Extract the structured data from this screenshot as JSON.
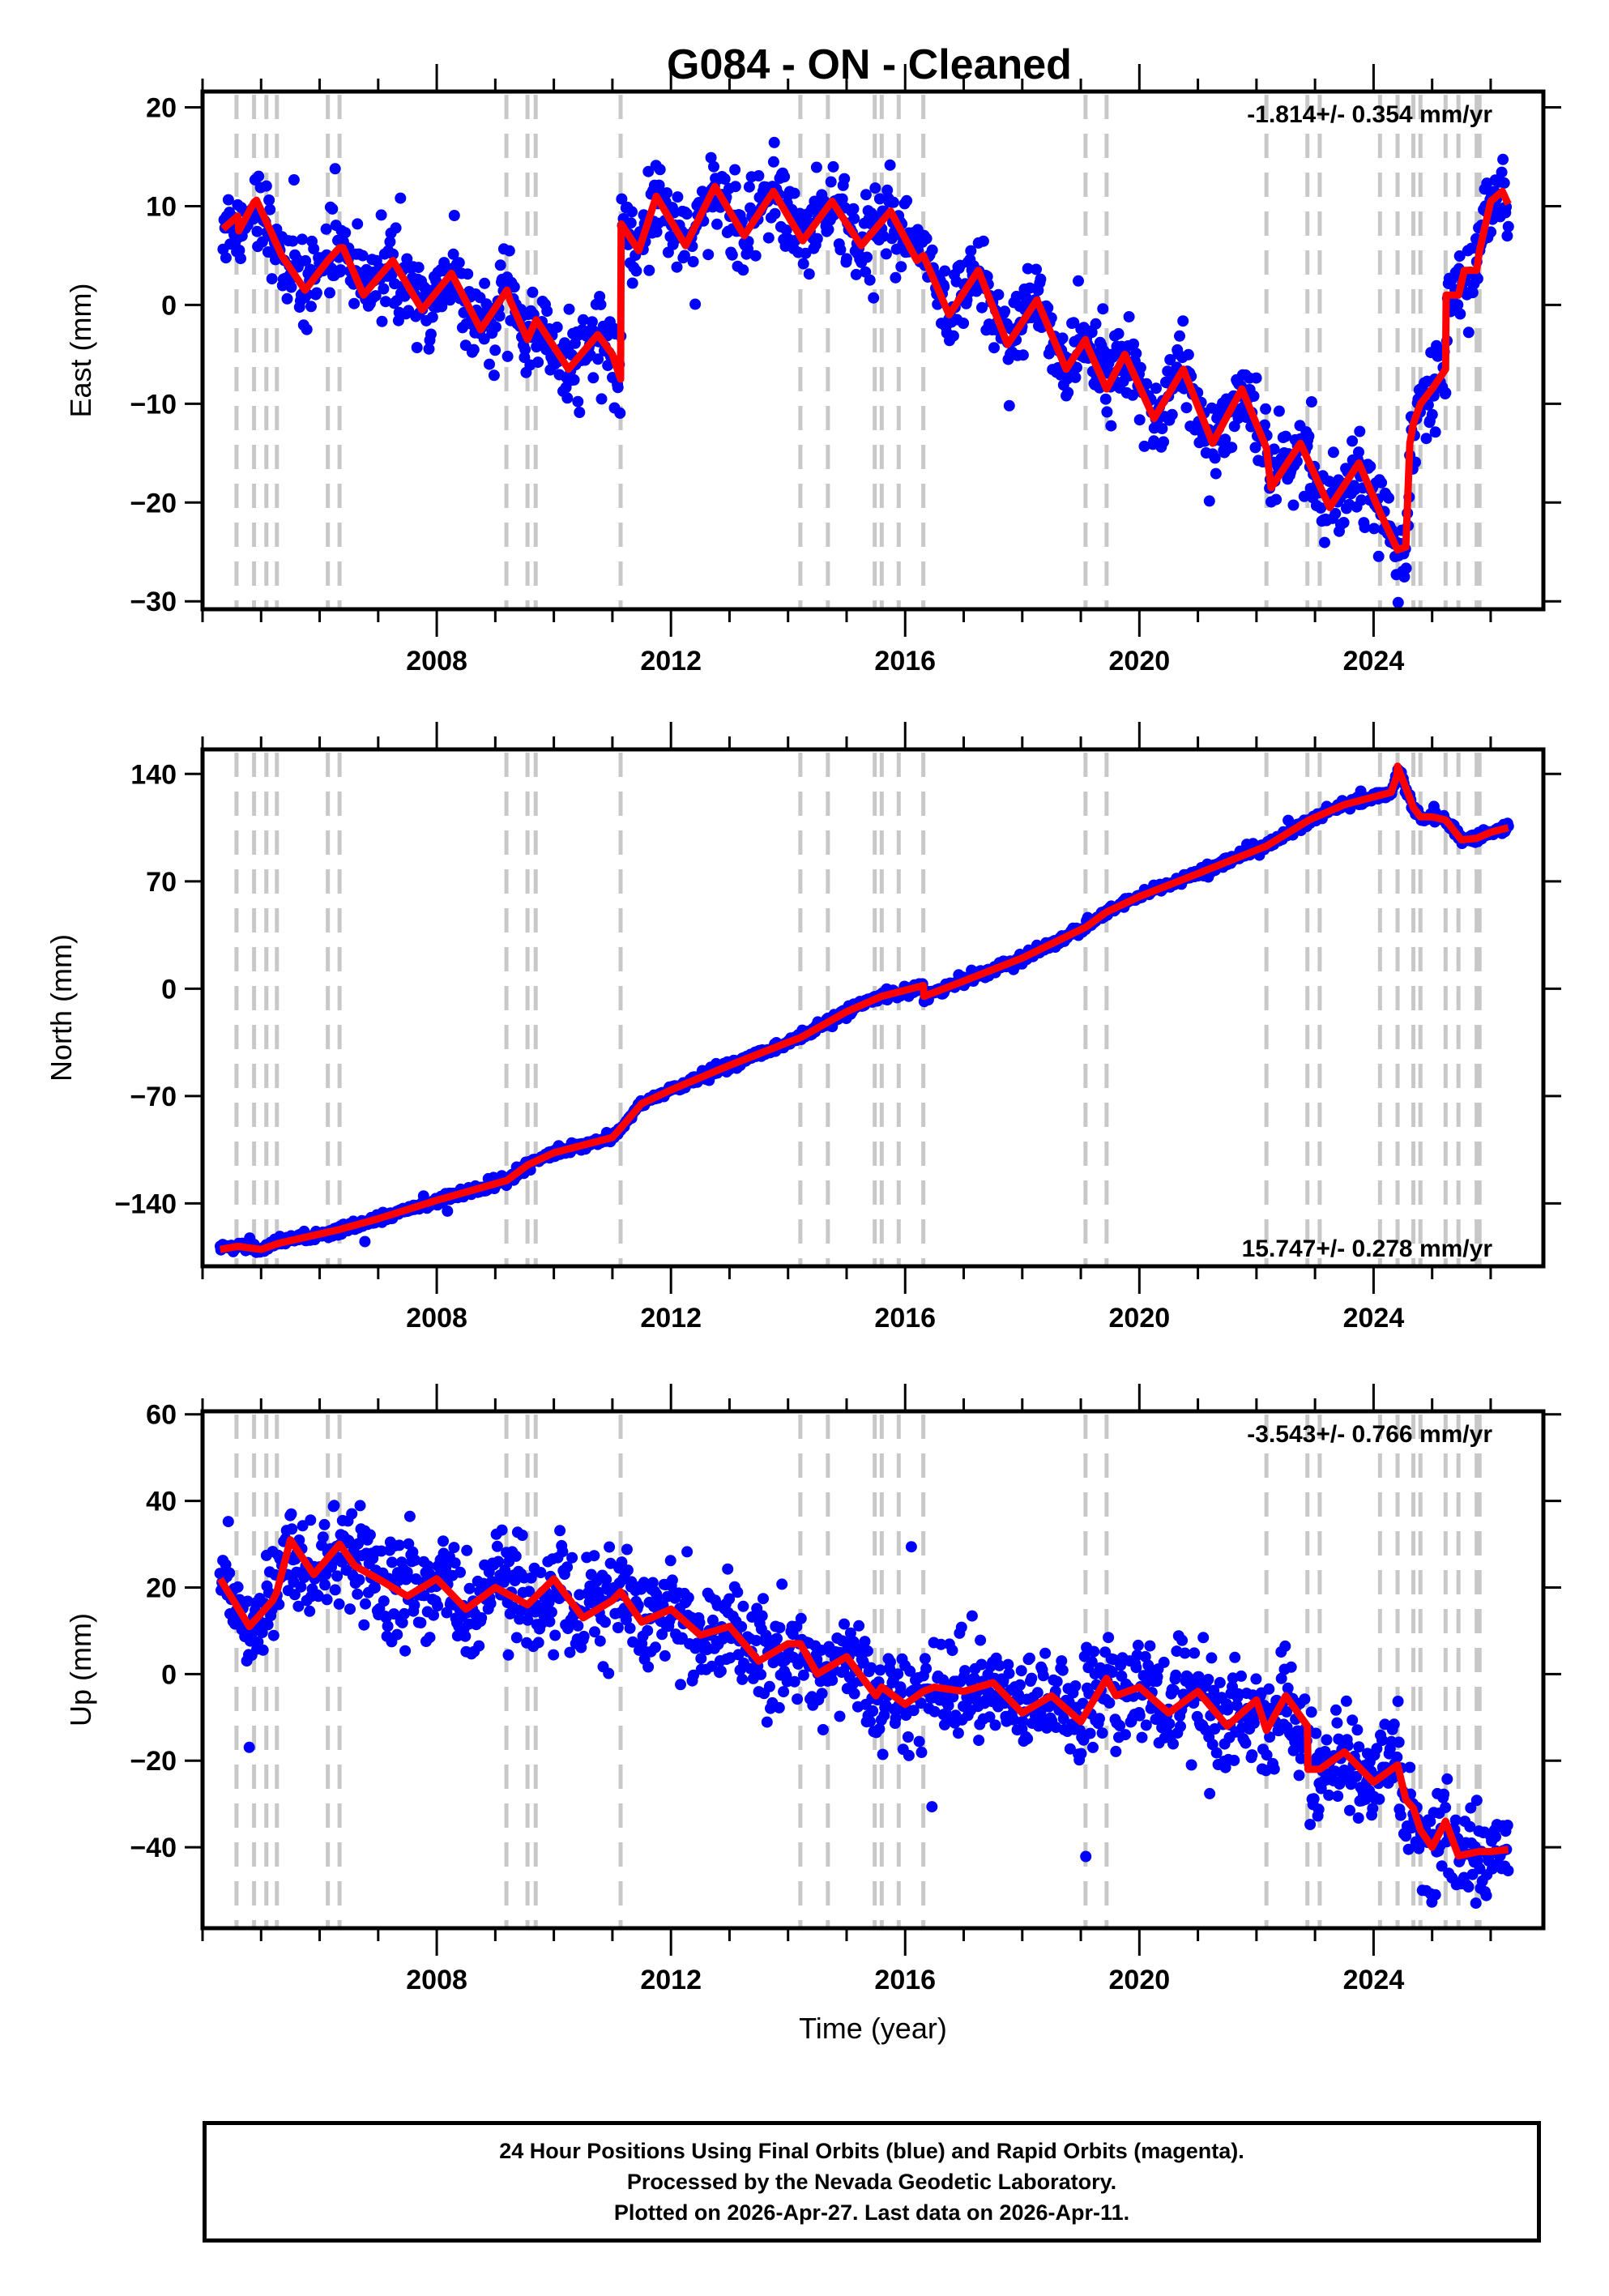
{
  "title": "G084  - ON - Cleaned",
  "colors": {
    "data_points": "#0000ff",
    "model_line": "#ff0000",
    "dashed_lines": "#c8c8c8",
    "frame": "#000000"
  },
  "footer": {
    "line1": "24 Hour Positions Using Final Orbits (blue) and Rapid Orbits (magenta).",
    "line2": "Processed by the Nevada Geodetic Laboratory.",
    "line3": "Plotted on 2026-Apr-27. Last data on 2026-Apr-11."
  },
  "chart_data": [
    {
      "type": "scatter",
      "name": "east",
      "title": "",
      "xlabel": "",
      "ylabel": "East (mm)",
      "xlim": [
        2004.0,
        2026.9
      ],
      "ylim": [
        -30.8,
        21.6
      ],
      "xticks": [
        2008,
        2012,
        2016,
        2020,
        2024
      ],
      "xtick_labels": [
        "2008",
        "2012",
        "2016",
        "2020",
        "2024"
      ],
      "yticks": [
        20,
        10,
        0,
        -10,
        -20,
        -30
      ],
      "ytick_labels": [
        "20",
        "10",
        "0",
        "−10",
        "−20",
        "−30"
      ],
      "rate_annotation": "-1.814+/- 0.354 mm/yr",
      "rate_position": "top-right",
      "scatter_noise_mm": 2.0,
      "model": {
        "x": [
          2004.35,
          2004.6,
          2004.62,
          2004.88,
          2004.92,
          2005.2,
          2005.35,
          2005.75,
          2006.14,
          2006.34,
          2006.4,
          2006.75,
          2007.25,
          2007.75,
          2008.25,
          2008.75,
          2009.2,
          2009.25,
          2009.55,
          2009.7,
          2010.25,
          2010.75,
          2011.0,
          2011.14,
          2011.15,
          2011.45,
          2011.75,
          2012.25,
          2012.75,
          2013.25,
          2013.75,
          2014.25,
          2014.75,
          2015.25,
          2015.75,
          2016.2,
          2016.31,
          2016.75,
          2017.25,
          2017.75,
          2018.25,
          2018.75,
          2019.08,
          2019.1,
          2019.44,
          2019.75,
          2020.25,
          2020.75,
          2021.25,
          2021.75,
          2022.17,
          2022.25,
          2022.75,
          2023.25,
          2023.75,
          2024.11,
          2024.41,
          2024.55,
          2024.62,
          2024.68,
          2024.8,
          2025.0,
          2025.23,
          2025.24,
          2025.45,
          2025.55,
          2025.76,
          2025.81,
          2026.0,
          2026.2,
          2026.3
        ],
        "y": [
          7.7,
          9.0,
          7.5,
          10.4,
          10.6,
          7.0,
          5.0,
          1.5,
          4.5,
          5.8,
          5.8,
          1.0,
          4.5,
          -0.5,
          3.2,
          -2.5,
          1.5,
          0.5,
          -3.5,
          -1.5,
          -6.5,
          -3.0,
          -5.0,
          -7.5,
          8.2,
          5.5,
          11.0,
          6.0,
          12.0,
          7.0,
          11.5,
          6.5,
          10.5,
          6.0,
          9.5,
          4.5,
          5.0,
          -1.0,
          3.5,
          -4.0,
          0.5,
          -6.5,
          -3.5,
          -4.0,
          -8.5,
          -5.0,
          -11.5,
          -6.5,
          -14.0,
          -8.5,
          -14.5,
          -18.5,
          -14.0,
          -20.5,
          -16.0,
          -21.0,
          -24.8,
          -24.5,
          -14.0,
          -12.0,
          -10.0,
          -8.5,
          -6.5,
          1.0,
          1.0,
          3.5,
          3.5,
          5.5,
          10.5,
          11.5,
          10.2
        ]
      },
      "offsets": [
        [
          2011.14,
          15.7
        ],
        [
          2024.41,
          10.5
        ],
        [
          2025.23,
          7.5
        ]
      ]
    },
    {
      "type": "scatter",
      "name": "north",
      "title": "",
      "xlabel": "",
      "ylabel": "North (mm)",
      "xlim": [
        2004.0,
        2026.9
      ],
      "ylim": [
        -181,
        156
      ],
      "xticks": [
        2008,
        2012,
        2016,
        2020,
        2024
      ],
      "xtick_labels": [
        "2008",
        "2012",
        "2016",
        "2020",
        "2024"
      ],
      "yticks": [
        140,
        70,
        0,
        -70,
        -140
      ],
      "ytick_labels": [
        "140",
        "70",
        "0",
        "−70",
        "−140"
      ],
      "rate_annotation": "15.747+/- 0.278 mm/yr",
      "rate_position": "bottom-right",
      "scatter_noise_mm": 1.6,
      "model": {
        "x": [
          2004.3,
          2004.6,
          2005.0,
          2005.3,
          2006.0,
          2006.34,
          2007.0,
          2008.0,
          2009.2,
          2009.55,
          2010.0,
          2011.0,
          2011.14,
          2011.5,
          2012.0,
          2013.0,
          2014.0,
          2014.21,
          2015.0,
          2015.6,
          2016.31,
          2016.32,
          2017.0,
          2018.0,
          2019.08,
          2019.44,
          2020.0,
          2021.0,
          2022.17,
          2022.9,
          2023.5,
          2024.3,
          2024.4,
          2024.41,
          2024.68,
          2024.8,
          2025.0,
          2025.23,
          2025.5,
          2025.76,
          2026.0,
          2026.3
        ],
        "y": [
          -170,
          -168,
          -170,
          -166,
          -160,
          -157,
          -150,
          -138,
          -125,
          -115,
          -107,
          -97,
          -91,
          -75,
          -66,
          -50,
          -35,
          -32,
          -15,
          -5,
          2,
          -5,
          5,
          20,
          40,
          50,
          60,
          75,
          93,
          110,
          120,
          128,
          139,
          145,
          118,
          112,
          112,
          110,
          97,
          98,
          102,
          105
        ]
      },
      "offsets": []
    },
    {
      "type": "scatter",
      "name": "up",
      "title": "",
      "xlabel": "Time (year)",
      "ylabel": "Up (mm)",
      "xlim": [
        2004.0,
        2026.9
      ],
      "ylim": [
        -58.7,
        60.7
      ],
      "xticks": [
        2008,
        2012,
        2016,
        2020,
        2024
      ],
      "xtick_labels": [
        "2008",
        "2012",
        "2016",
        "2020",
        "2024"
      ],
      "yticks": [
        60,
        40,
        20,
        0,
        -20,
        -40
      ],
      "ytick_labels": [
        "60",
        "40",
        "20",
        "0",
        "−20",
        "−40"
      ],
      "rate_annotation": "-3.543+/- 0.766 mm/yr",
      "rate_position": "top-right",
      "scatter_noise_mm": 6.0,
      "model": {
        "x": [
          2004.3,
          2004.8,
          2005.2,
          2005.27,
          2005.5,
          2005.9,
          2006.34,
          2006.6,
          2007.0,
          2007.5,
          2008.0,
          2008.5,
          2009.0,
          2009.55,
          2010.0,
          2010.5,
          2011.0,
          2011.14,
          2011.5,
          2012.0,
          2012.5,
          2013.0,
          2013.5,
          2014.0,
          2014.21,
          2014.5,
          2015.0,
          2015.5,
          2015.6,
          2016.0,
          2016.31,
          2016.5,
          2017.0,
          2017.5,
          2018.0,
          2018.5,
          2019.0,
          2019.44,
          2019.6,
          2020.0,
          2020.5,
          2021.0,
          2021.5,
          2022.0,
          2022.17,
          2022.5,
          2022.87,
          2022.88,
          2023.08,
          2023.5,
          2024.0,
          2024.41,
          2024.55,
          2024.68,
          2024.8,
          2025.0,
          2025.23,
          2025.45,
          2025.8,
          2026.0,
          2026.3
        ],
        "y": [
          22,
          11,
          17,
          19,
          31,
          23,
          30,
          25,
          22,
          18,
          22,
          15,
          20,
          16,
          22,
          13,
          17,
          19,
          12,
          15,
          9,
          11,
          3,
          7,
          7,
          0,
          4,
          -5,
          -3,
          -7,
          -4,
          -3,
          -4,
          -2,
          -9,
          -5,
          -11,
          -1,
          -5,
          -3,
          -9,
          -4,
          -12,
          -6,
          -13,
          -5,
          -12,
          -22,
          -22,
          -18,
          -25,
          -21,
          -29,
          -31,
          -36,
          -40,
          -34,
          -42,
          -41,
          -41,
          -40.5
        ]
      },
      "offsets": []
    }
  ],
  "event_lines_years": [
    2004.58,
    2004.88,
    2005.09,
    2005.27,
    2006.14,
    2006.34,
    2009.19,
    2009.55,
    2009.69,
    2011.14,
    2014.21,
    2014.68,
    2015.48,
    2015.6,
    2015.89,
    2016.31,
    2019.08,
    2019.44,
    2022.17,
    2022.87,
    2023.08,
    2024.11,
    2024.41,
    2024.68,
    2024.8,
    2025.23,
    2025.45,
    2025.76,
    2025.81
  ]
}
